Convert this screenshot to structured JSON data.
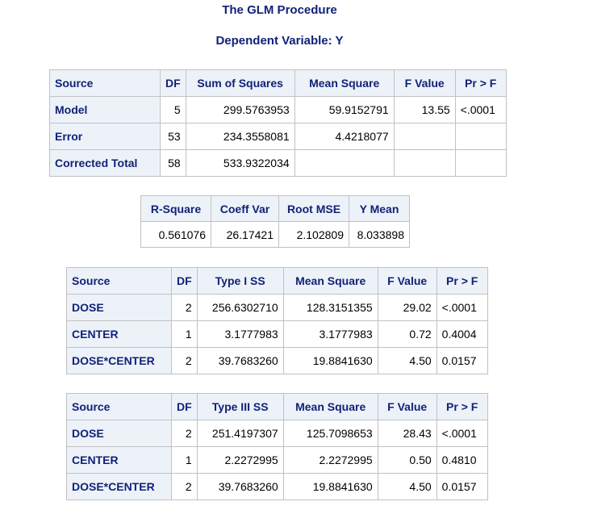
{
  "title": "The GLM Procedure",
  "subtitle": "Dependent Variable: Y",
  "anova": {
    "headers": [
      "Source",
      "DF",
      "Sum of Squares",
      "Mean Square",
      "F Value",
      "Pr > F"
    ],
    "rows": [
      {
        "source": "Model",
        "df": "5",
        "ss": "299.5763953",
        "ms": "59.9152791",
        "f": "13.55",
        "p": "<.0001"
      },
      {
        "source": "Error",
        "df": "53",
        "ss": "234.3558081",
        "ms": "4.4218077",
        "f": "",
        "p": ""
      },
      {
        "source": "Corrected Total",
        "df": "58",
        "ss": "533.9322034",
        "ms": "",
        "f": "",
        "p": ""
      }
    ]
  },
  "fit": {
    "headers": [
      "R-Square",
      "Coeff Var",
      "Root MSE",
      "Y Mean"
    ],
    "values": [
      "0.561076",
      "26.17421",
      "2.102809",
      "8.033898"
    ]
  },
  "type1": {
    "headers": [
      "Source",
      "DF",
      "Type I SS",
      "Mean Square",
      "F Value",
      "Pr > F"
    ],
    "rows": [
      {
        "source": "DOSE",
        "df": "2",
        "ss": "256.6302710",
        "ms": "128.3151355",
        "f": "29.02",
        "p": "<.0001"
      },
      {
        "source": "CENTER",
        "df": "1",
        "ss": "3.1777983",
        "ms": "3.1777983",
        "f": "0.72",
        "p": "0.4004"
      },
      {
        "source": "DOSE*CENTER",
        "df": "2",
        "ss": "39.7683260",
        "ms": "19.8841630",
        "f": "4.50",
        "p": "0.0157"
      }
    ]
  },
  "type3": {
    "headers": [
      "Source",
      "DF",
      "Type III SS",
      "Mean Square",
      "F Value",
      "Pr > F"
    ],
    "rows": [
      {
        "source": "DOSE",
        "df": "2",
        "ss": "251.4197307",
        "ms": "125.7098653",
        "f": "28.43",
        "p": "<.0001"
      },
      {
        "source": "CENTER",
        "df": "1",
        "ss": "2.2272995",
        "ms": "2.2272995",
        "f": "0.50",
        "p": "0.4810"
      },
      {
        "source": "DOSE*CENTER",
        "df": "2",
        "ss": "39.7683260",
        "ms": "19.8841630",
        "f": "4.50",
        "p": "0.0157"
      }
    ]
  }
}
